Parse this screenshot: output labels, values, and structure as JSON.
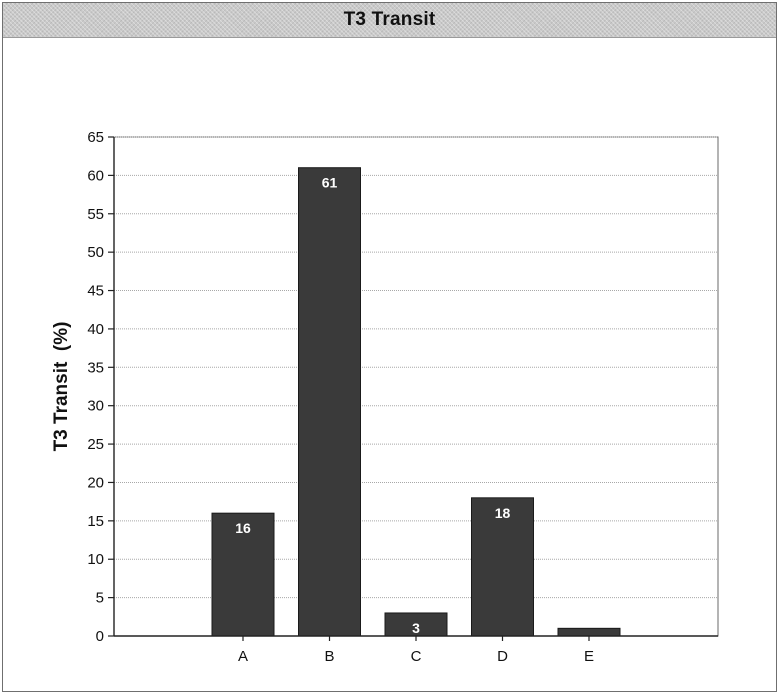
{
  "chart_data": {
    "type": "bar",
    "title": "T3 Transit",
    "ylabel": "T3 Transit  (%)",
    "xlabel": "",
    "categories": [
      "A",
      "B",
      "C",
      "D",
      "E"
    ],
    "values": [
      16,
      61,
      3,
      18,
      1
    ],
    "data_labels": [
      "16",
      "61",
      "3",
      "18",
      ""
    ],
    "ylim": [
      0,
      65
    ],
    "yticks": [
      0,
      5,
      10,
      15,
      20,
      25,
      30,
      35,
      40,
      45,
      50,
      55,
      60,
      65
    ],
    "grid": true,
    "legend": "none",
    "colors": {
      "bar": "#3a3a3a",
      "bar_edge": "#1a1a1a",
      "grid": "#a8a8a8",
      "title_bar": "#c9c9c9"
    }
  }
}
